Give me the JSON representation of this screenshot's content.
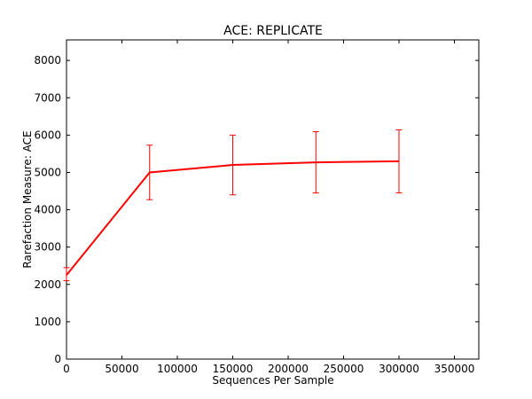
{
  "chart_data": {
    "type": "line",
    "title": "ACE: REPLICATE",
    "xlabel": "Sequences Per Sample",
    "ylabel": "Rarefaction Measure: ACE",
    "xlim": [
      0,
      372000
    ],
    "ylim": [
      0,
      8550
    ],
    "x_ticks": [
      0,
      50000,
      100000,
      150000,
      200000,
      250000,
      300000,
      350000
    ],
    "y_ticks": [
      0,
      1000,
      2000,
      3000,
      4000,
      5000,
      6000,
      7000,
      8000
    ],
    "grid": false,
    "series": [
      {
        "color": "#ff0000",
        "points": [
          {
            "x": 10,
            "y": 2250,
            "err_low": 2100,
            "err_high": 2450
          },
          {
            "x": 75000,
            "y": 5000,
            "err_low": 4270,
            "err_high": 5730
          },
          {
            "x": 150000,
            "y": 5200,
            "err_low": 4400,
            "err_high": 6000
          },
          {
            "x": 225000,
            "y": 5270,
            "err_low": 4450,
            "err_high": 6090
          },
          {
            "x": 300000,
            "y": 5300,
            "err_low": 4450,
            "err_high": 6140
          }
        ]
      }
    ]
  }
}
